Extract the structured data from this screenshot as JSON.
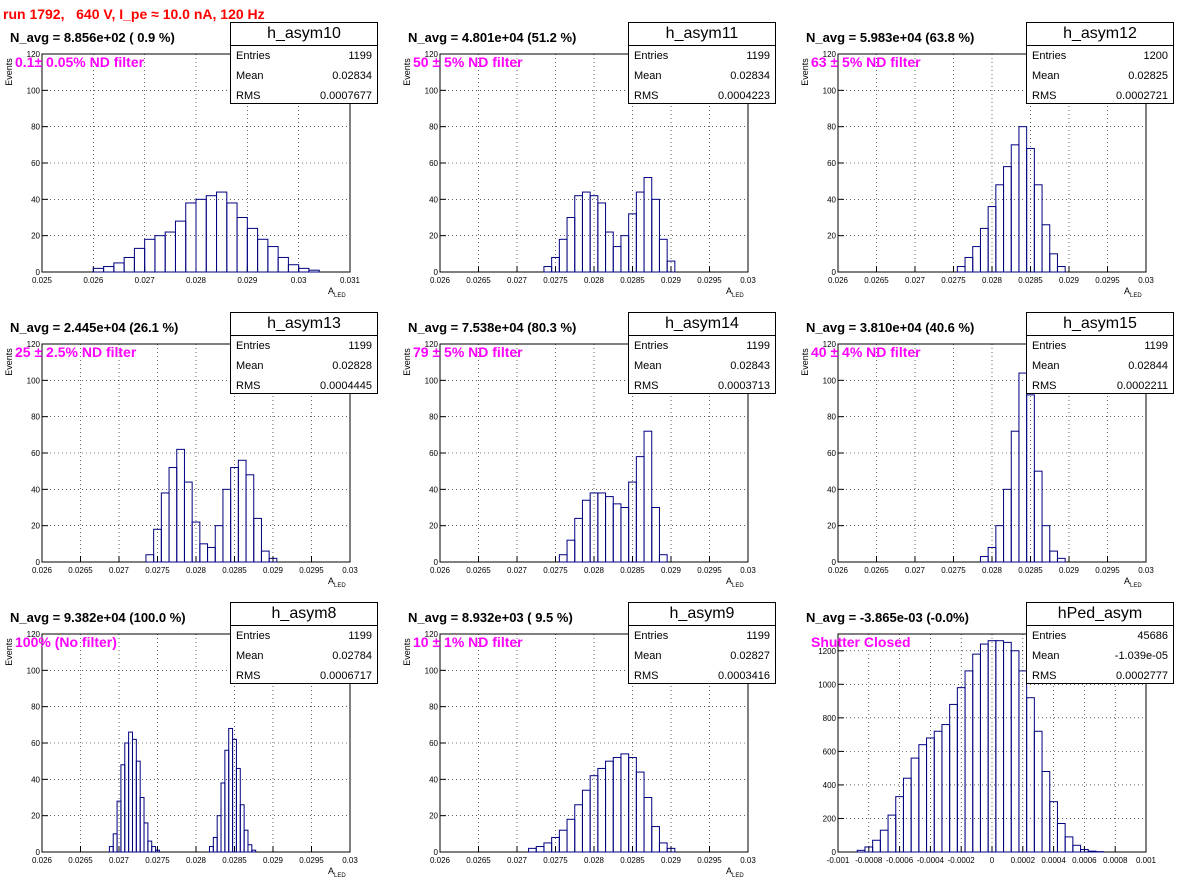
{
  "run_title": "run 1792,   640 V, I_pe ≈ 10.0 nA, 120 Hz",
  "colors": {
    "hist": "#000080",
    "title": "#ff0000",
    "filter": "#ff00ff"
  },
  "chart_data": [
    {
      "type": "bar",
      "hist_name": "h_asym10",
      "navg": "N_avg = 8.856e+02 ( 0.9 %)",
      "filter": "0.1± 0.05% ND filter",
      "stats": {
        "entries_label": "Entries",
        "entries": "1199",
        "mean_label": "Mean",
        "mean": "0.02834",
        "rms_label": "RMS",
        "rms": "0.0007677"
      },
      "xlabel": "A",
      "xlabel_sub": "LED",
      "ylabel": "Events",
      "xlim": [
        0.025,
        0.031
      ],
      "ylim": [
        0,
        120
      ],
      "xticks": [
        "0.025",
        "0.026",
        "0.027",
        "0.028",
        "0.029",
        "0.03",
        "0.031"
      ],
      "yticks": [
        "0",
        "20",
        "40",
        "60",
        "80",
        "100",
        "120"
      ],
      "bins": [
        0.0261,
        0.0263,
        0.0265,
        0.0267,
        0.0269,
        0.0271,
        0.0273,
        0.0275,
        0.0277,
        0.0279,
        0.0281,
        0.0283,
        0.0285,
        0.0287,
        0.0289,
        0.0291,
        0.0293,
        0.0295,
        0.0297,
        0.0299,
        0.0301,
        0.0303
      ],
      "values": [
        2,
        3,
        5,
        8,
        13,
        18,
        20,
        22,
        28,
        38,
        40,
        42,
        44,
        38,
        30,
        24,
        18,
        14,
        8,
        4,
        2,
        1
      ]
    },
    {
      "type": "bar",
      "hist_name": "h_asym11",
      "navg": "N_avg = 4.801e+04 (51.2 %)",
      "filter": "50 ± 5% ND filter",
      "stats": {
        "entries_label": "Entries",
        "entries": "1199",
        "mean_label": "Mean",
        "mean": "0.02834",
        "rms_label": "RMS",
        "rms": "0.0004223"
      },
      "xlabel": "A",
      "xlabel_sub": "LED",
      "ylabel": "Events",
      "xlim": [
        0.026,
        0.03
      ],
      "ylim": [
        0,
        120
      ],
      "xticks": [
        "0.026",
        "0.0265",
        "0.027",
        "0.0275",
        "0.028",
        "0.0285",
        "0.029",
        "0.0295",
        "0.03"
      ],
      "yticks": [
        "0",
        "20",
        "40",
        "60",
        "80",
        "100",
        "120"
      ],
      "bins": [
        0.0274,
        0.0275,
        0.0276,
        0.0277,
        0.0278,
        0.0279,
        0.028,
        0.0281,
        0.0282,
        0.0283,
        0.0284,
        0.0285,
        0.0286,
        0.0287,
        0.0288,
        0.0289,
        0.029
      ],
      "values": [
        3,
        8,
        18,
        30,
        42,
        44,
        42,
        38,
        22,
        14,
        20,
        32,
        44,
        52,
        40,
        18,
        6
      ]
    },
    {
      "type": "bar",
      "hist_name": "h_asym12",
      "navg": "N_avg = 5.983e+04 (63.8 %)",
      "filter": "63 ± 5% ND filter",
      "stats": {
        "entries_label": "Entries",
        "entries": "1200",
        "mean_label": "Mean",
        "mean": "0.02825",
        "rms_label": "RMS",
        "rms": "0.0002721"
      },
      "xlabel": "A",
      "xlabel_sub": "LED",
      "ylabel": "Events",
      "xlim": [
        0.026,
        0.03
      ],
      "ylim": [
        0,
        120
      ],
      "xticks": [
        "0.026",
        "0.0265",
        "0.027",
        "0.0275",
        "0.028",
        "0.0285",
        "0.029",
        "0.0295",
        "0.03"
      ],
      "yticks": [
        "0",
        "20",
        "40",
        "60",
        "80",
        "100",
        "120"
      ],
      "bins": [
        0.0276,
        0.0277,
        0.0278,
        0.0279,
        0.028,
        0.0281,
        0.0282,
        0.0283,
        0.0284,
        0.0285,
        0.0286,
        0.0287,
        0.0288,
        0.0289
      ],
      "values": [
        3,
        8,
        14,
        24,
        36,
        48,
        58,
        70,
        80,
        68,
        48,
        26,
        10,
        3
      ]
    },
    {
      "type": "bar",
      "hist_name": "h_asym13",
      "navg": "N_avg = 2.445e+04 (26.1 %)",
      "filter": "25 ± 2.5% ND filter",
      "stats": {
        "entries_label": "Entries",
        "entries": "1199",
        "mean_label": "Mean",
        "mean": "0.02828",
        "rms_label": "RMS",
        "rms": "0.0004445"
      },
      "xlabel": "A",
      "xlabel_sub": "LED",
      "ylabel": "Events",
      "xlim": [
        0.026,
        0.03
      ],
      "ylim": [
        0,
        120
      ],
      "xticks": [
        "0.026",
        "0.0265",
        "0.027",
        "0.0275",
        "0.028",
        "0.0285",
        "0.029",
        "0.0295",
        "0.03"
      ],
      "yticks": [
        "0",
        "20",
        "40",
        "60",
        "80",
        "100",
        "120"
      ],
      "bins": [
        0.0274,
        0.0275,
        0.0276,
        0.0277,
        0.0278,
        0.0279,
        0.028,
        0.0281,
        0.0282,
        0.0283,
        0.0284,
        0.0285,
        0.0286,
        0.0287,
        0.0288,
        0.0289,
        0.029
      ],
      "values": [
        4,
        18,
        38,
        52,
        62,
        44,
        22,
        10,
        8,
        20,
        40,
        52,
        56,
        48,
        24,
        6,
        2
      ]
    },
    {
      "type": "bar",
      "hist_name": "h_asym14",
      "navg": "N_avg = 7.538e+04 (80.3 %)",
      "filter": "79 ± 5% ND filter",
      "stats": {
        "entries_label": "Entries",
        "entries": "1199",
        "mean_label": "Mean",
        "mean": "0.02843",
        "rms_label": "RMS",
        "rms": "0.0003713"
      },
      "xlabel": "A",
      "xlabel_sub": "LED",
      "ylabel": "Events",
      "xlim": [
        0.026,
        0.03
      ],
      "ylim": [
        0,
        120
      ],
      "xticks": [
        "0.026",
        "0.0265",
        "0.027",
        "0.0275",
        "0.028",
        "0.0285",
        "0.029",
        "0.0295",
        "0.03"
      ],
      "yticks": [
        "0",
        "20",
        "40",
        "60",
        "80",
        "100",
        "120"
      ],
      "bins": [
        0.0276,
        0.0277,
        0.0278,
        0.0279,
        0.028,
        0.0281,
        0.0282,
        0.0283,
        0.0284,
        0.0285,
        0.0286,
        0.0287,
        0.0288,
        0.0289
      ],
      "values": [
        4,
        12,
        24,
        34,
        38,
        38,
        36,
        32,
        30,
        44,
        58,
        72,
        30,
        4
      ]
    },
    {
      "type": "bar",
      "hist_name": "h_asym15",
      "navg": "N_avg = 3.810e+04 (40.6 %)",
      "filter": "40 ± 4% ND filter",
      "stats": {
        "entries_label": "Entries",
        "entries": "1199",
        "mean_label": "Mean",
        "mean": "0.02844",
        "rms_label": "RMS",
        "rms": "0.0002211"
      },
      "xlabel": "A",
      "xlabel_sub": "LED",
      "ylabel": "Events",
      "xlim": [
        0.026,
        0.03
      ],
      "ylim": [
        0,
        120
      ],
      "xticks": [
        "0.026",
        "0.0265",
        "0.027",
        "0.0275",
        "0.028",
        "0.0285",
        "0.029",
        "0.0295",
        "0.03"
      ],
      "yticks": [
        "0",
        "20",
        "40",
        "60",
        "80",
        "100",
        "120"
      ],
      "bins": [
        0.0279,
        0.028,
        0.0281,
        0.0282,
        0.0283,
        0.0284,
        0.0285,
        0.0286,
        0.0287,
        0.0288,
        0.0289
      ],
      "values": [
        3,
        8,
        20,
        40,
        72,
        104,
        92,
        50,
        20,
        6,
        2
      ]
    },
    {
      "type": "bar",
      "hist_name": "h_asym8",
      "navg": "N_avg = 9.382e+04 (100.0 %)",
      "filter": "100% (No filter)",
      "stats": {
        "entries_label": "Entries",
        "entries": "1199",
        "mean_label": "Mean",
        "mean": "0.02784",
        "rms_label": "RMS",
        "rms": "0.0006717"
      },
      "xlabel": "A",
      "xlabel_sub": "LED",
      "ylabel": "Events",
      "xlim": [
        0.026,
        0.03
      ],
      "ylim": [
        0,
        120
      ],
      "xticks": [
        "0.026",
        "0.0265",
        "0.027",
        "0.0275",
        "0.028",
        "0.0285",
        "0.029",
        "0.0295",
        "0.03"
      ],
      "yticks": [
        "0",
        "20",
        "40",
        "60",
        "80",
        "100",
        "120"
      ],
      "bins": [
        0.0269,
        0.02695,
        0.027,
        0.02705,
        0.0271,
        0.02715,
        0.0272,
        0.02725,
        0.0273,
        0.02735,
        0.0274,
        0.02745,
        0.0275,
        0.0282,
        0.02825,
        0.0283,
        0.02835,
        0.0284,
        0.02845,
        0.0285,
        0.02855,
        0.0286,
        0.02865,
        0.0287,
        0.02875
      ],
      "values": [
        3,
        10,
        28,
        48,
        60,
        66,
        62,
        50,
        30,
        16,
        6,
        3,
        1,
        3,
        8,
        20,
        38,
        56,
        68,
        62,
        46,
        26,
        12,
        4,
        1
      ]
    },
    {
      "type": "bar",
      "hist_name": "h_asym9",
      "navg": "N_avg = 8.932e+03 ( 9.5 %)",
      "filter": "10 ± 1% ND filter",
      "stats": {
        "entries_label": "Entries",
        "entries": "1199",
        "mean_label": "Mean",
        "mean": "0.02827",
        "rms_label": "RMS",
        "rms": "0.0003416"
      },
      "xlabel": "A",
      "xlabel_sub": "LED",
      "ylabel": "Events",
      "xlim": [
        0.026,
        0.03
      ],
      "ylim": [
        0,
        120
      ],
      "xticks": [
        "0.026",
        "0.0265",
        "0.027",
        "0.0275",
        "0.028",
        "0.0285",
        "0.029",
        "0.0295",
        "0.03"
      ],
      "yticks": [
        "0",
        "20",
        "40",
        "60",
        "80",
        "100",
        "120"
      ],
      "bins": [
        0.0272,
        0.0273,
        0.0274,
        0.0275,
        0.0276,
        0.0277,
        0.0278,
        0.0279,
        0.028,
        0.0281,
        0.0282,
        0.0283,
        0.0284,
        0.0285,
        0.0286,
        0.0287,
        0.0288,
        0.0289,
        0.029
      ],
      "values": [
        2,
        3,
        5,
        8,
        12,
        18,
        26,
        34,
        42,
        46,
        50,
        52,
        54,
        52,
        44,
        30,
        14,
        5,
        2
      ]
    },
    {
      "type": "bar",
      "hist_name": "hPed_asym",
      "navg": "N_avg = -3.865e-03 (-0.0%)",
      "filter": "Shutter Closed",
      "stats": {
        "entries_label": "Entries",
        "entries": "45686",
        "mean_label": "Mean",
        "mean": "-1.039e-05",
        "rms_label": "RMS",
        "rms": "0.0002777"
      },
      "xlabel": "",
      "xlabel_sub": "",
      "ylabel": "",
      "xlim": [
        -0.001,
        0.001
      ],
      "ylim": [
        0,
        1300
      ],
      "xticks": [
        "-0.001",
        "-0.0008",
        "-0.0006",
        "-0.0004",
        "-0.0002",
        "0",
        "0.0002",
        "0.0004",
        "0.0006",
        "0.0008",
        "0.001"
      ],
      "yticks": [
        "0",
        "200",
        "400",
        "600",
        "800",
        "1000",
        "1200"
      ],
      "bins": [
        -0.00085,
        -0.0008,
        -0.00075,
        -0.0007,
        -0.00065,
        -0.0006,
        -0.00055,
        -0.0005,
        -0.00045,
        -0.0004,
        -0.00035,
        -0.0003,
        -0.00025,
        -0.0002,
        -0.00015,
        -0.0001,
        -5e-05,
        0,
        5e-05,
        0.0001,
        0.00015,
        0.0002,
        0.00025,
        0.0003,
        0.00035,
        0.0004,
        0.00045,
        0.0005,
        0.00055,
        0.0006,
        0.00065,
        0.0007
      ],
      "values": [
        10,
        30,
        70,
        130,
        220,
        330,
        440,
        560,
        640,
        680,
        720,
        760,
        880,
        980,
        1080,
        1180,
        1240,
        1260,
        1260,
        1250,
        1200,
        1080,
        920,
        720,
        480,
        300,
        170,
        90,
        40,
        15,
        5,
        2
      ]
    }
  ]
}
